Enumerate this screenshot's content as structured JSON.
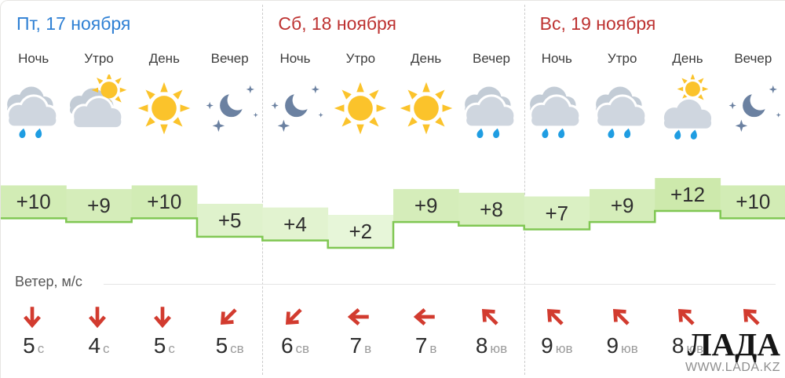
{
  "wind_section": {
    "label": "Ветер, м/с"
  },
  "watermark": {
    "title": "ЛАДА",
    "url": "WWW.LADA.KZ"
  },
  "colors": {
    "day_blue": "#2f80d4",
    "day_red": "#bd3231",
    "temp_line": "#80c753",
    "temp_fill_cool": "#e7f6d9",
    "temp_fill_warm": "#cde9ac",
    "arrow_red": "#d23b2f"
  },
  "days": [
    {
      "title": "Пт, 17 ноября",
      "color": "#2f80d4",
      "cells": [
        {
          "period": "Ночь",
          "icon": "rain",
          "temp_label": "+10",
          "temp": 10,
          "wind": {
            "speed": "5",
            "dir": "с",
            "arrow_deg": 0
          }
        },
        {
          "period": "Утро",
          "icon": "sun-cloud",
          "temp_label": "+9",
          "temp": 9,
          "wind": {
            "speed": "4",
            "dir": "с",
            "arrow_deg": 0
          }
        },
        {
          "period": "День",
          "icon": "sun",
          "temp_label": "+10",
          "temp": 10,
          "wind": {
            "speed": "5",
            "dir": "с",
            "arrow_deg": 0
          }
        },
        {
          "period": "Вечер",
          "icon": "moon-stars",
          "temp_label": "+5",
          "temp": 5,
          "wind": {
            "speed": "5",
            "dir": "св",
            "arrow_deg": 45
          }
        }
      ]
    },
    {
      "title": "Сб, 18 ноября",
      "color": "#bd3231",
      "cells": [
        {
          "period": "Ночь",
          "icon": "moon-stars",
          "temp_label": "+4",
          "temp": 4,
          "wind": {
            "speed": "6",
            "dir": "св",
            "arrow_deg": 45
          }
        },
        {
          "period": "Утро",
          "icon": "sun",
          "temp_label": "+2",
          "temp": 2,
          "wind": {
            "speed": "7",
            "dir": "в",
            "arrow_deg": 90
          }
        },
        {
          "period": "День",
          "icon": "sun",
          "temp_label": "+9",
          "temp": 9,
          "wind": {
            "speed": "7",
            "dir": "в",
            "arrow_deg": 90
          }
        },
        {
          "period": "Вечер",
          "icon": "rain",
          "temp_label": "+8",
          "temp": 8,
          "wind": {
            "speed": "8",
            "dir": "юв",
            "arrow_deg": 135
          }
        }
      ]
    },
    {
      "title": "Вс, 19 ноября",
      "color": "#bd3231",
      "cells": [
        {
          "period": "Ночь",
          "icon": "rain",
          "temp_label": "+7",
          "temp": 7,
          "wind": {
            "speed": "9",
            "dir": "юв",
            "arrow_deg": 135
          }
        },
        {
          "period": "Утро",
          "icon": "rain",
          "temp_label": "+9",
          "temp": 9,
          "wind": {
            "speed": "9",
            "dir": "юв",
            "arrow_deg": 135
          }
        },
        {
          "period": "День",
          "icon": "sun-cloud-rain",
          "temp_label": "+12",
          "temp": 12,
          "wind": {
            "speed": "8",
            "dir": "юв",
            "arrow_deg": 135
          }
        },
        {
          "period": "Вечер",
          "icon": "moon-stars",
          "temp_label": "+10",
          "temp": 10,
          "wind": {
            "speed": "",
            "dir": "",
            "arrow_deg": 135
          }
        }
      ]
    }
  ]
}
